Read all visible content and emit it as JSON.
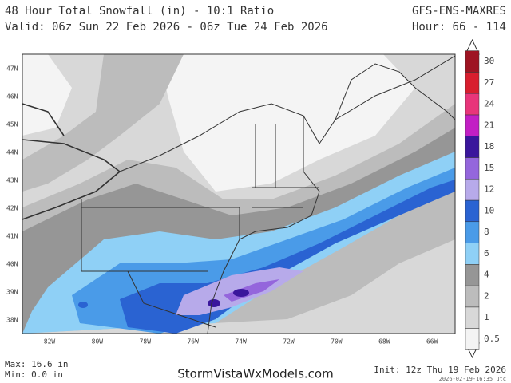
{
  "header": {
    "title": "48 Hour Total Snowfall (in) - 10:1 Ratio",
    "valid": "Valid: 06z Sun 22 Feb 2026 - 06z Tue 24 Feb 2026",
    "model": "GFS-ENS-MAXRES",
    "hour": "Hour: 66 - 114"
  },
  "map": {
    "lat_labels": [
      "47N",
      "46N",
      "45N",
      "44N",
      "43N",
      "42N",
      "41N",
      "40N",
      "39N",
      "38N"
    ],
    "lon_labels": [
      "82W",
      "80W",
      "78W",
      "76W",
      "74W",
      "72W",
      "70W",
      "68W",
      "66W"
    ]
  },
  "legend": {
    "levels": [
      0.5,
      1,
      2,
      4,
      6,
      8,
      10,
      12,
      15,
      18,
      21,
      24,
      27,
      30
    ],
    "colors": [
      "#f4f4f4",
      "#d8d8d8",
      "#bcbcbc",
      "#969696",
      "#8fd0f6",
      "#4a9be8",
      "#2a63d2",
      "#b7aaea",
      "#9466dc",
      "#3a169c",
      "#c21fc4",
      "#e8357a",
      "#d81e2e",
      "#9e1422"
    ]
  },
  "footer": {
    "max": "Max: 16.6 in",
    "min": "Min: 0.0 in",
    "site": "StormVistaWxModels.com",
    "init": "Init: 12z Thu 19 Feb 2026",
    "timestamp": "2026-02-19-16:35 utc"
  }
}
